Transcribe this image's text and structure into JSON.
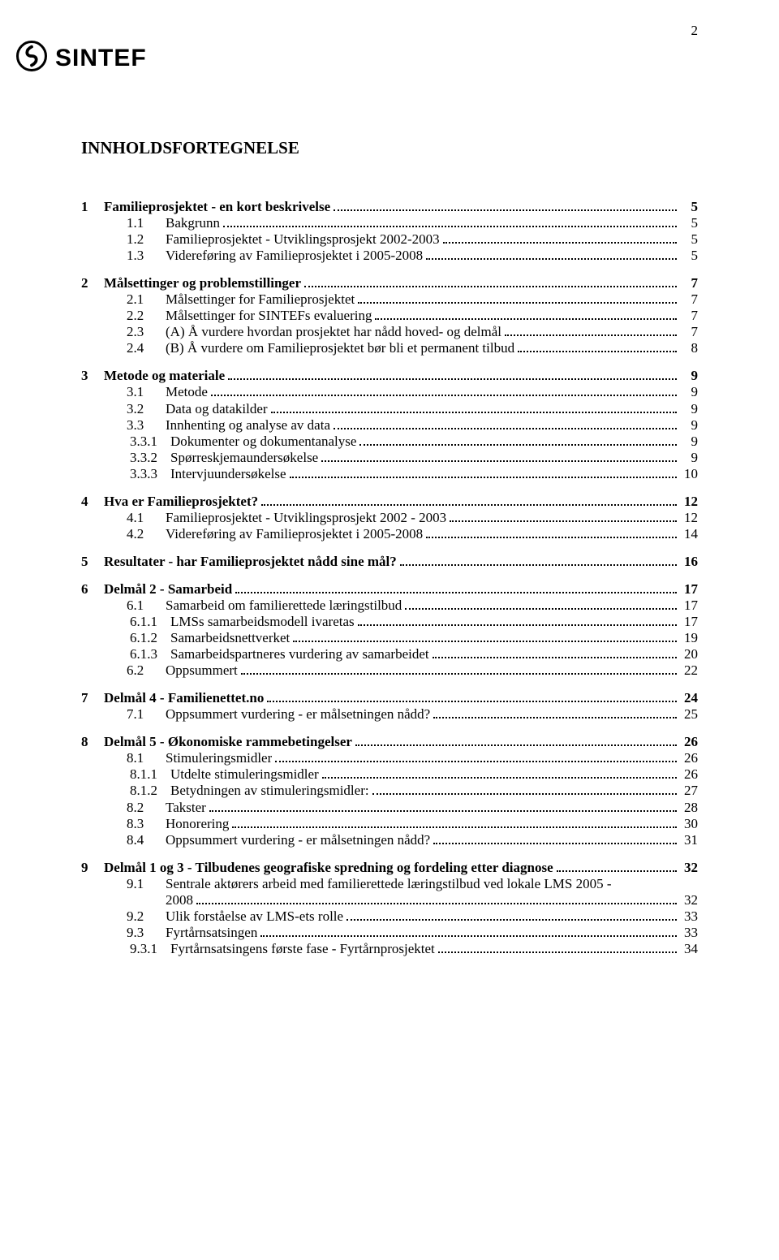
{
  "page_number": "2",
  "logo_text": "SINTEF",
  "toc_title": "INNHOLDSFORTEGNELSE",
  "toc": [
    {
      "level": 1,
      "num": "1",
      "label": "Familieprosjektet - en kort beskrivelse",
      "page": "5"
    },
    {
      "level": 2,
      "num": "1.1",
      "label": "Bakgrunn",
      "page": "5"
    },
    {
      "level": 2,
      "num": "1.2",
      "label": "Familieprosjektet - Utviklingsprosjekt 2002-2003",
      "page": "5"
    },
    {
      "level": 2,
      "num": "1.3",
      "label": "Videreføring av Familieprosjektet i 2005-2008",
      "page": "5"
    },
    {
      "level": 1,
      "num": "2",
      "label": "Målsettinger og problemstillinger",
      "page": "7"
    },
    {
      "level": 2,
      "num": "2.1",
      "label": "Målsettinger for Familieprosjektet",
      "page": "7"
    },
    {
      "level": 2,
      "num": "2.2",
      "label": "Målsettinger for SINTEFs evaluering",
      "page": "7"
    },
    {
      "level": 2,
      "num": "2.3",
      "label": "(A) Å vurdere hvordan prosjektet har nådd hoved- og delmål",
      "page": "7"
    },
    {
      "level": 2,
      "num": "2.4",
      "label": "(B) Å vurdere om Familieprosjektet bør bli et permanent tilbud",
      "page": "8"
    },
    {
      "level": 1,
      "num": "3",
      "label": "Metode og materiale",
      "page": "9"
    },
    {
      "level": 2,
      "num": "3.1",
      "label": "Metode",
      "page": "9"
    },
    {
      "level": 2,
      "num": "3.2",
      "label": "Data og datakilder",
      "page": "9"
    },
    {
      "level": 2,
      "num": "3.3",
      "label": "Innhenting og analyse av data",
      "page": "9"
    },
    {
      "level": 3,
      "num": "3.3.1",
      "label": "Dokumenter og dokumentanalyse",
      "page": "9"
    },
    {
      "level": 3,
      "num": "3.3.2",
      "label": "Spørreskjemaundersøkelse",
      "page": "9"
    },
    {
      "level": 3,
      "num": "3.3.3",
      "label": "Intervjuundersøkelse",
      "page": "10"
    },
    {
      "level": 1,
      "num": "4",
      "label": "Hva er Familieprosjektet?",
      "page": "12"
    },
    {
      "level": 2,
      "num": "4.1",
      "label": "Familieprosjektet - Utviklingsprosjekt 2002 - 2003",
      "page": "12"
    },
    {
      "level": 2,
      "num": "4.2",
      "label": "Videreføring av Familieprosjektet i 2005-2008",
      "page": "14"
    },
    {
      "level": 1,
      "num": "5",
      "label": "Resultater - har Familieprosjektet nådd sine mål?",
      "page": "16"
    },
    {
      "level": 1,
      "num": "6",
      "label": "Delmål 2 - Samarbeid",
      "page": "17"
    },
    {
      "level": 2,
      "num": "6.1",
      "label": "Samarbeid om familierettede læringstilbud",
      "page": "17"
    },
    {
      "level": 3,
      "num": "6.1.1",
      "label": "LMSs samarbeidsmodell ivaretas",
      "page": "17"
    },
    {
      "level": 3,
      "num": "6.1.2",
      "label": "Samarbeidsnettverket",
      "page": "19"
    },
    {
      "level": 3,
      "num": "6.1.3",
      "label": "Samarbeidspartneres vurdering av samarbeidet",
      "page": "20"
    },
    {
      "level": 2,
      "num": "6.2",
      "label": "Oppsummert",
      "page": "22"
    },
    {
      "level": 1,
      "num": "7",
      "label": "Delmål 4 - Familienettet.no",
      "page": "24"
    },
    {
      "level": 2,
      "num": "7.1",
      "label": "Oppsummert vurdering - er målsetningen nådd?",
      "page": "25"
    },
    {
      "level": 1,
      "num": "8",
      "label": "Delmål 5 - Økonomiske rammebetingelser",
      "page": "26"
    },
    {
      "level": 2,
      "num": "8.1",
      "label": "Stimuleringsmidler",
      "page": "26"
    },
    {
      "level": 3,
      "num": "8.1.1",
      "label": "Utdelte stimuleringsmidler",
      "page": "26"
    },
    {
      "level": 3,
      "num": "8.1.2",
      "label": "Betydningen av stimuleringsmidler:",
      "page": "27"
    },
    {
      "level": 2,
      "num": "8.2",
      "label": "Takster",
      "page": "28"
    },
    {
      "level": 2,
      "num": "8.3",
      "label": "Honorering",
      "page": "30"
    },
    {
      "level": 2,
      "num": "8.4",
      "label": "Oppsummert vurdering - er målsetningen nådd?",
      "page": "31"
    },
    {
      "level": 1,
      "num": "9",
      "label": "Delmål 1 og 3 - Tilbudenes geografiske spredning og fordeling etter diagnose",
      "page": "32"
    },
    {
      "level": 2,
      "num": "9.1",
      "label": "Sentrale aktørers arbeid med familierettede læringstilbud ved lokale LMS 2005 - 2008",
      "page": "32",
      "wrap": true
    },
    {
      "level": 2,
      "num": "9.2",
      "label": "Ulik forståelse av LMS-ets rolle",
      "page": "33"
    },
    {
      "level": 2,
      "num": "9.3",
      "label": "Fyrtårnsatsingen",
      "page": "33"
    },
    {
      "level": 3,
      "num": "9.3.1",
      "label": "Fyrtårnsatsingens første fase - Fyrtårnprosjektet",
      "page": "34"
    }
  ]
}
